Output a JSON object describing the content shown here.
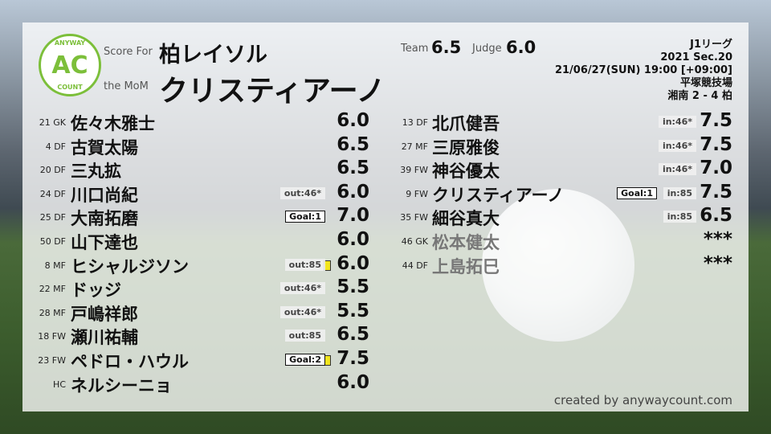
{
  "header": {
    "score_for_label": "Score For",
    "team_name": "柏レイソル",
    "mom_label": "the MoM",
    "mom_name": "クリスティアーノ",
    "team_label": "Team",
    "team_score": "6.5",
    "judge_label": "Judge",
    "judge_score": "6.0"
  },
  "logo": {
    "top": "ANYWAY",
    "center": "AC",
    "bottom": "COUNT",
    "color": "#7cbf3a"
  },
  "match": {
    "league": "J1リーグ",
    "section": "2021 Sec.20",
    "datetime": "21/06/27(SUN) 19:00 [+09:00]",
    "venue": "平塚競技場",
    "result": "湘南 2 - 4 柏"
  },
  "left_players": [
    {
      "num": "21",
      "pos": "GK",
      "name": "佐々木雅士",
      "score": "6.0"
    },
    {
      "num": "4",
      "pos": "DF",
      "name": "古賀太陽",
      "score": "6.5"
    },
    {
      "num": "20",
      "pos": "DF",
      "name": "三丸拡",
      "score": "6.5"
    },
    {
      "num": "24",
      "pos": "DF",
      "name": "川口尚紀",
      "score": "6.0",
      "sub": "out:46*"
    },
    {
      "num": "25",
      "pos": "DF",
      "name": "大南拓磨",
      "score": "7.0",
      "goal": "Goal:1"
    },
    {
      "num": "50",
      "pos": "DF",
      "name": "山下達也",
      "score": "6.0"
    },
    {
      "num": "8",
      "pos": "MF",
      "name": "ヒシャルジソン",
      "score": "6.0",
      "sub": "out:85",
      "card": "yellow"
    },
    {
      "num": "22",
      "pos": "MF",
      "name": "ドッジ",
      "score": "5.5",
      "sub": "out:46*"
    },
    {
      "num": "28",
      "pos": "MF",
      "name": "戸嶋祥郎",
      "score": "5.5",
      "sub": "out:46*"
    },
    {
      "num": "18",
      "pos": "FW",
      "name": "瀬川祐輔",
      "score": "6.5",
      "sub": "out:85"
    },
    {
      "num": "23",
      "pos": "FW",
      "name": "ペドロ・ハウル",
      "score": "7.5",
      "goal": "Goal:2",
      "card": "yellow"
    },
    {
      "num": "",
      "pos": "HC",
      "name": "ネルシーニョ",
      "score": "6.0"
    }
  ],
  "right_players": [
    {
      "num": "13",
      "pos": "DF",
      "name": "北爪健吾",
      "score": "7.5",
      "sub": "in:46*"
    },
    {
      "num": "27",
      "pos": "MF",
      "name": "三原雅俊",
      "score": "7.5",
      "sub": "in:46*"
    },
    {
      "num": "39",
      "pos": "FW",
      "name": "神谷優太",
      "score": "7.0",
      "sub": "in:46*"
    },
    {
      "num": "9",
      "pos": "FW",
      "name": "クリスティアーノ",
      "score": "7.5",
      "sub": "in:85",
      "goal": "Goal:1"
    },
    {
      "num": "35",
      "pos": "FW",
      "name": "細谷真大",
      "score": "6.5",
      "sub": "in:85"
    },
    {
      "num": "46",
      "pos": "GK",
      "name": "松本健太",
      "score": "***",
      "unused": true
    },
    {
      "num": "44",
      "pos": "DF",
      "name": "上島拓巳",
      "score": "***",
      "unused": true
    }
  ],
  "footer": {
    "credit": "created by anywaycount.com"
  }
}
